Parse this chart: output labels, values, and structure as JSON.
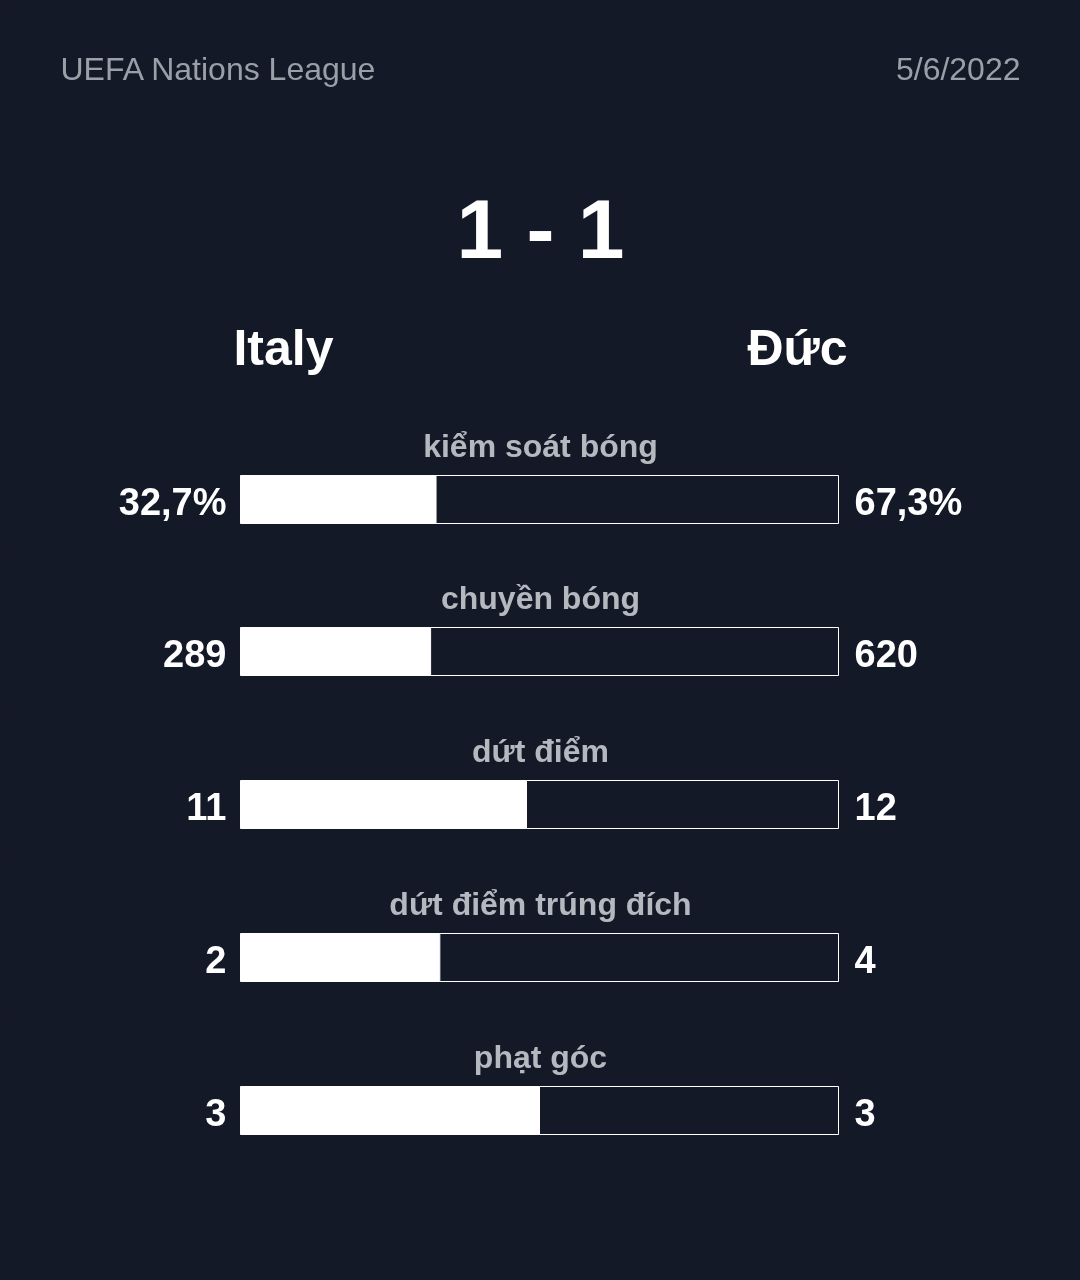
{
  "chart_data": [
    {
      "type": "bar",
      "orientation": "horizontal",
      "stacked": true,
      "tick_labels": false,
      "grid": false,
      "title": "kiểm soát bóng",
      "subtitle": "UEFA Nations League",
      "annotations": [
        "5/6/2022",
        "1 - 1"
      ],
      "categories": [
        null
      ],
      "xlim": [
        0,
        100
      ],
      "series": [
        {
          "name": "Italy",
          "color": "#ffffff",
          "values": [
            32.7
          ],
          "value_labels": [
            "32,7%"
          ]
        },
        {
          "name": "Đức",
          "color": "#141927",
          "values": [
            67.3
          ],
          "value_labels": [
            "67,3%"
          ]
        }
      ]
    },
    {
      "type": "bar",
      "orientation": "horizontal",
      "stacked": true,
      "tick_labels": false,
      "grid": false,
      "title": "chuyền bóng",
      "categories": [
        null
      ],
      "xlim": [
        0,
        909
      ],
      "data_labels": true,
      "series": [
        {
          "color": "#ffffff",
          "values": [
            289
          ]
        },
        {
          "color": "#141927",
          "values": [
            620
          ]
        }
      ]
    },
    {
      "type": "bar",
      "orientation": "horizontal",
      "stacked": true,
      "tick_labels": false,
      "grid": false,
      "title": "dứt điểm",
      "categories": [
        null
      ],
      "xlim": [
        0,
        23
      ],
      "data_labels": true,
      "series": [
        {
          "color": "#ffffff",
          "values": [
            11
          ]
        },
        {
          "color": "#141927",
          "values": [
            12
          ]
        }
      ]
    },
    {
      "type": "bar",
      "orientation": "horizontal",
      "stacked": true,
      "tick_labels": false,
      "grid": false,
      "title": "dứt điểm trúng đích",
      "categories": [
        null
      ],
      "xlim": [
        0,
        6
      ],
      "data_labels": true,
      "series": [
        {
          "color": "#ffffff",
          "values": [
            2
          ]
        },
        {
          "color": "#141927",
          "values": [
            4
          ]
        }
      ]
    },
    {
      "type": "bar",
      "orientation": "horizontal",
      "stacked": true,
      "tick_labels": false,
      "grid": false,
      "title": "phạt góc",
      "categories": [
        null
      ],
      "xlim": [
        0,
        6
      ],
      "data_labels": true,
      "series": [
        {
          "color": "#ffffff",
          "values": [
            3
          ]
        },
        {
          "color": "#141927",
          "values": [
            3
          ]
        }
      ]
    }
  ]
}
